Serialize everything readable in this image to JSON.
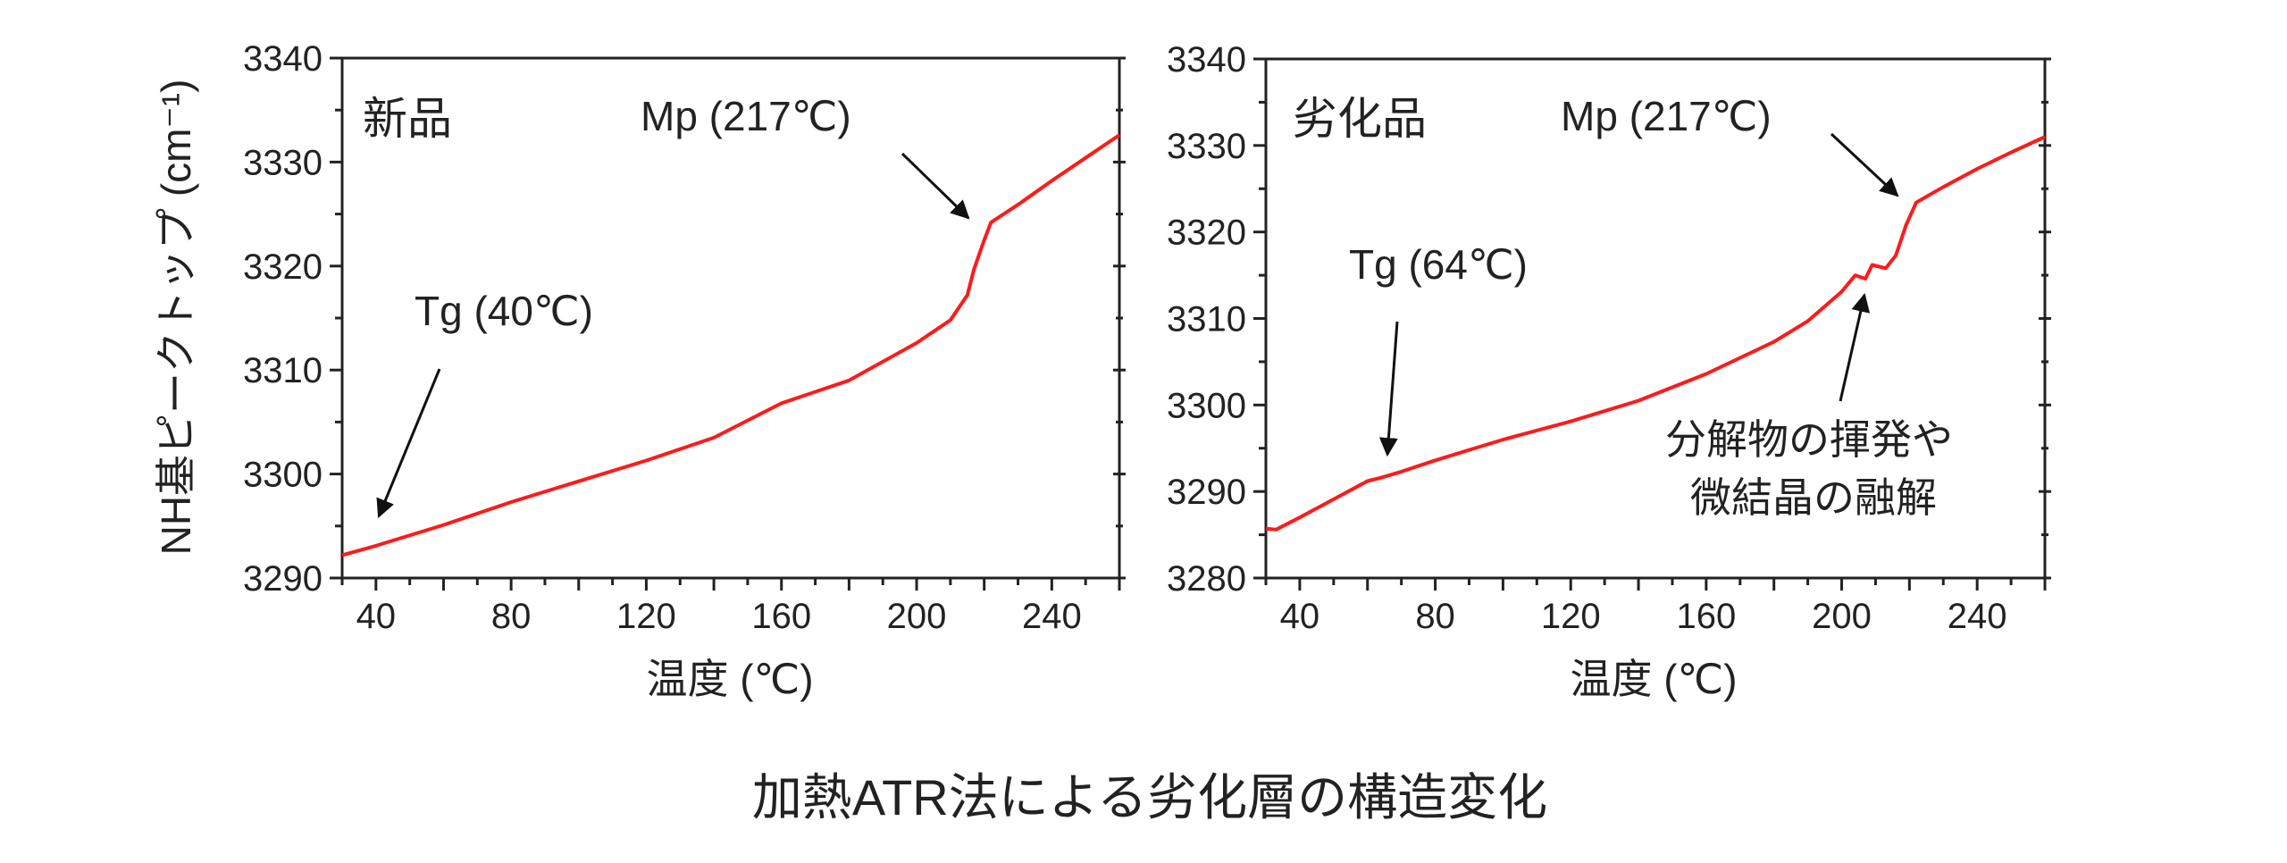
{
  "title": "加熱ATR法による劣化層の構造変化",
  "colors": {
    "line": "#ff1a1a",
    "axis": "#222222",
    "arrow": "#111111"
  },
  "chart_data": [
    {
      "type": "line",
      "panel_label": "新品",
      "xlabel": "温度 (℃)",
      "ylabel": "NH基ピークトップ (cm⁻¹)",
      "xlim": [
        30,
        260
      ],
      "ylim": [
        3290,
        3340
      ],
      "xticks": [
        40,
        80,
        120,
        160,
        200,
        240
      ],
      "yticks": [
        3290,
        3300,
        3310,
        3320,
        3330,
        3340
      ],
      "grid": false,
      "x": [
        30,
        40,
        60,
        80,
        100,
        120,
        140,
        160,
        180,
        200,
        210,
        215,
        217,
        220,
        222,
        230,
        240,
        250,
        260
      ],
      "y": [
        3292.2,
        3293.1,
        3295.1,
        3297.3,
        3299.3,
        3301.3,
        3303.5,
        3306.8,
        3309.0,
        3312.6,
        3314.8,
        3317.2,
        3319.7,
        3322.5,
        3324.2,
        3325.9,
        3328.2,
        3330.4,
        3332.6
      ],
      "annotations": [
        {
          "text": "Tg (40℃)",
          "x": 40
        },
        {
          "text": "Mp (217℃)",
          "x": 217
        }
      ]
    },
    {
      "type": "line",
      "panel_label": "劣化品",
      "xlabel": "温度 (℃)",
      "xlim": [
        30,
        260
      ],
      "ylim": [
        3280,
        3340
      ],
      "xticks": [
        40,
        80,
        120,
        160,
        200,
        240
      ],
      "yticks": [
        3280,
        3290,
        3300,
        3310,
        3320,
        3330,
        3340
      ],
      "grid": false,
      "x": [
        30,
        33,
        40,
        50,
        60,
        64,
        70,
        80,
        90,
        100,
        120,
        140,
        160,
        180,
        190,
        200,
        204,
        207,
        209,
        213,
        216,
        219,
        222,
        230,
        240,
        250,
        260
      ],
      "y": [
        3285.7,
        3285.6,
        3287.0,
        3289.1,
        3291.2,
        3291.6,
        3292.3,
        3293.6,
        3294.8,
        3296.0,
        3298.1,
        3300.5,
        3303.6,
        3307.3,
        3309.7,
        3313.1,
        3315.0,
        3314.6,
        3316.2,
        3315.8,
        3317.3,
        3320.8,
        3323.4,
        3325.2,
        3327.3,
        3329.2,
        3331.0
      ],
      "annotations": [
        {
          "text": "Tg (64℃)",
          "x": 64
        },
        {
          "text": "Mp (217℃)",
          "x": 217
        },
        {
          "text": [
            "分解物の揮発や",
            "微結晶の融解"
          ],
          "x": 207
        }
      ]
    }
  ]
}
